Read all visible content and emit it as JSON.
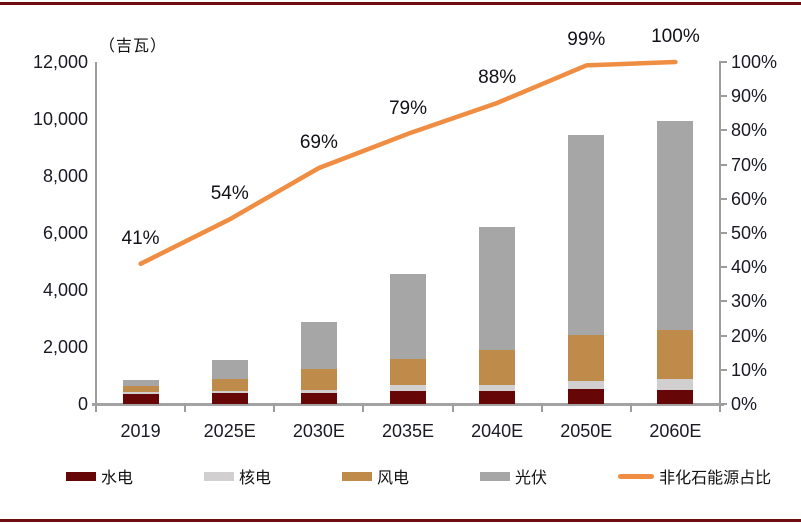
{
  "rule_color": "#6f0c10",
  "chart_data": {
    "type": "bar",
    "subtype": "stacked-bar-with-line",
    "title": "",
    "ylabel": "（吉瓦）",
    "categories": [
      "2019",
      "2025E",
      "2030E",
      "2035E",
      "2040E",
      "2050E",
      "2060E"
    ],
    "series": [
      {
        "name": "水电",
        "color": "#660606",
        "values": [
          360,
          380,
          390,
          440,
          470,
          520,
          500
        ]
      },
      {
        "name": "核电",
        "color": "#d1cfcf",
        "values": [
          60,
          70,
          110,
          210,
          200,
          290,
          380
        ]
      },
      {
        "name": "风电",
        "color": "#bf8b4a",
        "values": [
          210,
          430,
          720,
          930,
          1230,
          1620,
          1700
        ]
      },
      {
        "name": "光伏",
        "color": "#a6a6a6",
        "values": [
          200,
          650,
          1640,
          2980,
          4300,
          7010,
          7350
        ]
      }
    ],
    "line_series": {
      "name": "非化石能源占比",
      "color": "#ef8e43",
      "values": [
        41,
        54,
        69,
        79,
        88,
        99,
        100
      ],
      "labels": [
        "41%",
        "54%",
        "69%",
        "79%",
        "88%",
        "99%",
        "100%"
      ]
    },
    "left_axis": {
      "min": 0,
      "max": 12000,
      "tick_step": 2000,
      "ticks": [
        "0",
        "2,000",
        "4,000",
        "6,000",
        "8,000",
        "10,000",
        "12,000"
      ]
    },
    "right_axis": {
      "min": 0,
      "max": 100,
      "tick_step": 10,
      "ticks": [
        "0%",
        "10%",
        "20%",
        "30%",
        "40%",
        "50%",
        "60%",
        "70%",
        "80%",
        "90%",
        "100%"
      ]
    },
    "grid": false,
    "legend_position": "bottom"
  },
  "legend": {
    "items": [
      {
        "label": "水电",
        "type": "box",
        "color": "#660606"
      },
      {
        "label": "核电",
        "type": "box",
        "color": "#d1cfcf"
      },
      {
        "label": "风电",
        "type": "box",
        "color": "#bf8b4a"
      },
      {
        "label": "光伏",
        "type": "box",
        "color": "#a6a6a6"
      },
      {
        "label": "非化石能源占比",
        "type": "line",
        "color": "#ef8e43"
      }
    ]
  }
}
